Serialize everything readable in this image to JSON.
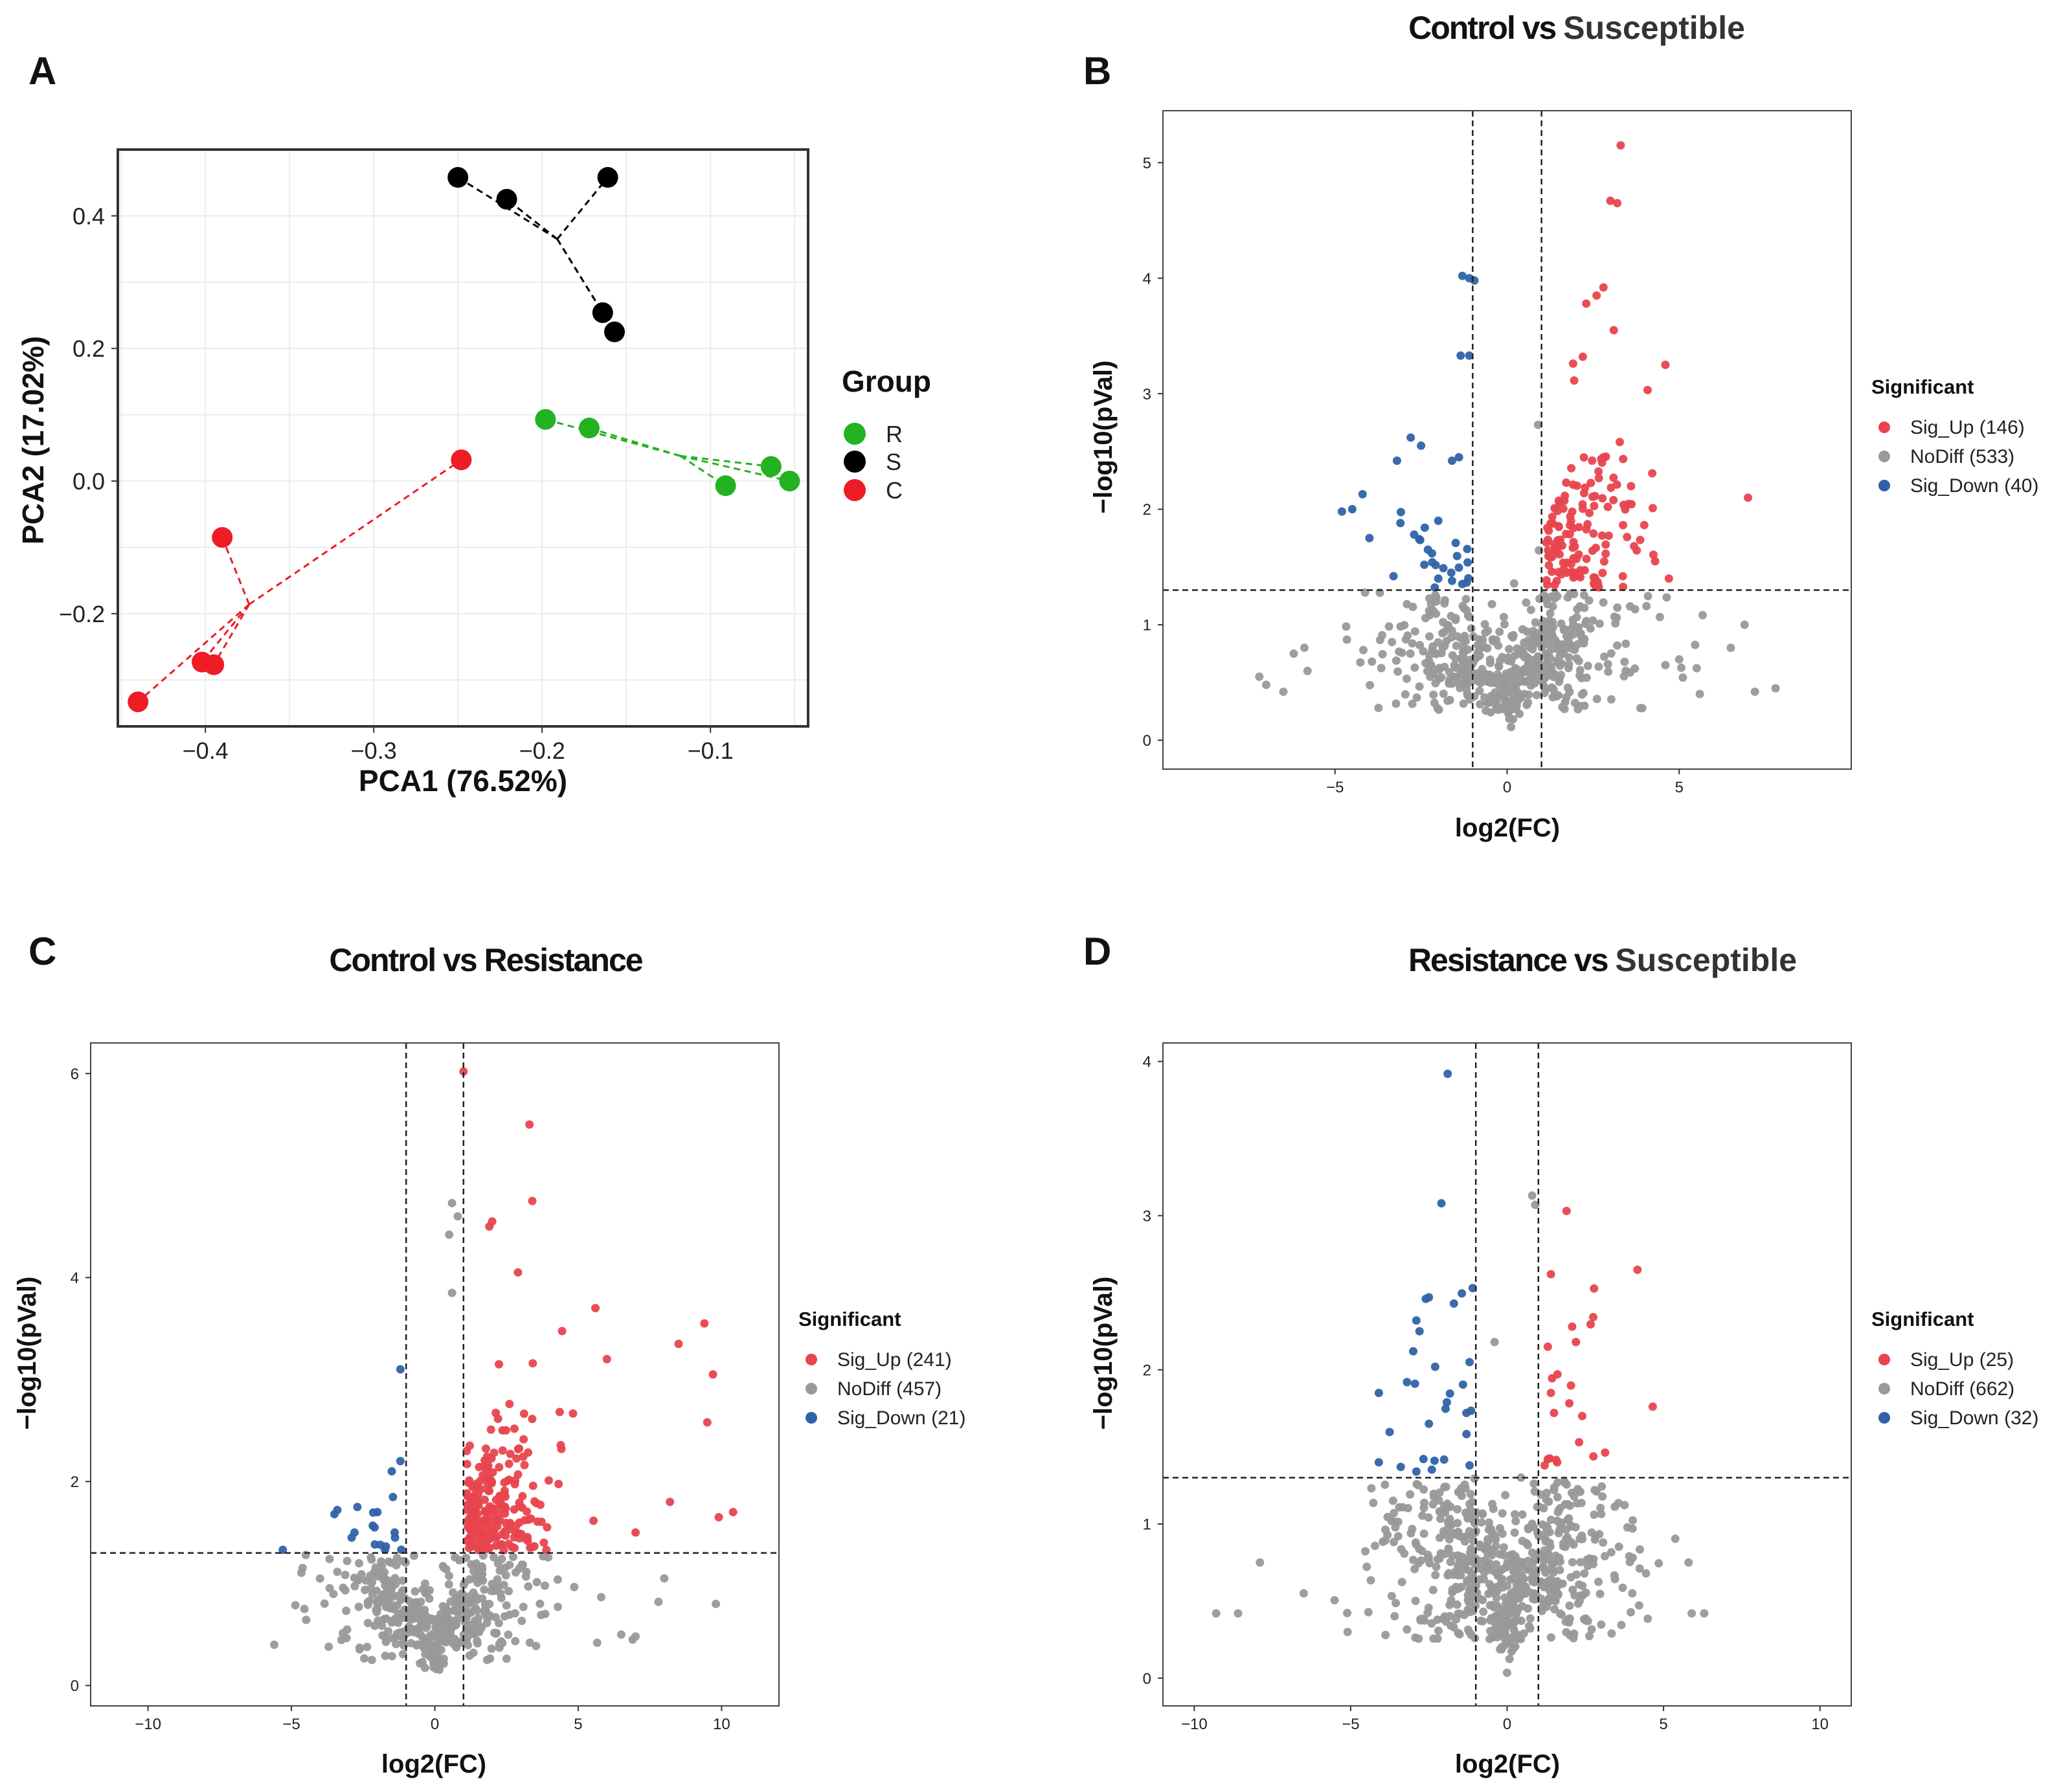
{
  "colors": {
    "R": "#22b222",
    "S": "#000000",
    "C": "#ee1c25",
    "up": "#e8444e",
    "nodiff": "#999999",
    "down": "#2f63a8",
    "grid": "#ebebeb",
    "frame": "#333333"
  },
  "chart_data": [
    {
      "id": "A",
      "type": "scatter",
      "panel_label": "A",
      "title": "",
      "xlabel": "PCA1 (76.52%)",
      "ylabel": "PCA2 (17.02%)",
      "xlim": [
        -0.452,
        -0.042
      ],
      "ylim": [
        -0.37,
        0.5
      ],
      "xticks": [
        -0.4,
        -0.3,
        -0.2,
        -0.1
      ],
      "xtick_labels": [
        "−0.4",
        "−0.3",
        "−0.2",
        "−0.1"
      ],
      "yticks": [
        -0.2,
        0.0,
        0.2,
        0.4
      ],
      "ytick_labels": [
        "−0.2",
        "0.0",
        "0.2",
        "0.4"
      ],
      "legend": {
        "title": "Group",
        "position": "right",
        "entries": [
          "R",
          "S",
          "C"
        ]
      },
      "series": [
        {
          "name": "R",
          "centroid": [
            -0.118,
            0.038
          ],
          "x": [
            -0.198,
            -0.172,
            -0.091,
            -0.064,
            -0.053
          ],
          "y": [
            0.093,
            0.08,
            -0.007,
            0.022,
            0.0
          ]
        },
        {
          "name": "S",
          "centroid": [
            -0.191,
            0.365
          ],
          "x": [
            -0.25,
            -0.221,
            -0.161,
            -0.164,
            -0.157
          ],
          "y": [
            0.458,
            0.425,
            0.458,
            0.254,
            0.225
          ]
        },
        {
          "name": "C",
          "centroid": [
            -0.374,
            -0.186
          ],
          "x": [
            -0.248,
            -0.39,
            -0.402,
            -0.395,
            -0.44
          ],
          "y": [
            0.032,
            -0.085,
            -0.273,
            -0.277,
            -0.333
          ]
        }
      ]
    },
    {
      "id": "B",
      "type": "scatter",
      "panel_label": "B",
      "title_parts": [
        "Control vs ",
        "Susceptible"
      ],
      "xlabel": "log2(FC)",
      "ylabel": "−log10(pVal)",
      "xlim": [
        -10,
        10
      ],
      "ylim": [
        -0.25,
        5.45
      ],
      "xticks": [
        -5,
        0,
        5
      ],
      "xtick_labels": [
        "−5",
        "0",
        "5"
      ],
      "yticks": [
        0,
        1,
        2,
        3,
        4,
        5
      ],
      "ytick_labels": [
        "0",
        "1",
        "2",
        "3",
        "4",
        "5"
      ],
      "fc_threshold": [
        -1,
        1
      ],
      "p_threshold": 1.3,
      "legend": {
        "title": "Significant",
        "position": "right",
        "entries": [
          "Sig_Up (146)",
          "NoDiff (533)",
          "Sig_Down (40)"
        ]
      },
      "counts": {
        "up": 146,
        "nodiff": 533,
        "down": 40
      },
      "highlight_points": {
        "up": [
          [
            3.3,
            5.15
          ],
          [
            3.0,
            4.67
          ],
          [
            3.2,
            4.65
          ],
          [
            2.8,
            3.92
          ],
          [
            2.6,
            3.85
          ],
          [
            2.3,
            3.78
          ],
          [
            3.1,
            3.55
          ],
          [
            4.6,
            3.25
          ],
          [
            2.2,
            3.32
          ],
          [
            7.0,
            2.1
          ],
          [
            4.3,
            1.55
          ],
          [
            4.7,
            1.4
          ],
          [
            2.8,
            2.45
          ],
          [
            3.6,
            2.2
          ]
        ],
        "down": [
          [
            -1.1,
            4.0
          ],
          [
            -1.3,
            4.02
          ],
          [
            -0.95,
            3.98
          ],
          [
            -1.35,
            3.33
          ],
          [
            -1.1,
            3.33
          ],
          [
            -2.8,
            2.62
          ],
          [
            -2.5,
            2.55
          ],
          [
            -3.2,
            2.42
          ],
          [
            -1.6,
            2.42
          ],
          [
            -1.4,
            2.45
          ],
          [
            -4.2,
            2.13
          ],
          [
            -4.8,
            1.98
          ],
          [
            -4.5,
            2.0
          ],
          [
            -3.1,
            1.88
          ],
          [
            -2.0,
            1.9
          ],
          [
            -4.0,
            1.75
          ],
          [
            -2.7,
            1.78
          ],
          [
            -2.3,
            1.65
          ],
          [
            -3.3,
            1.42
          ],
          [
            -2.0,
            1.4
          ],
          [
            -1.6,
            1.38
          ]
        ],
        "nodiff": [
          [
            -7.2,
            0.55
          ],
          [
            -7.0,
            0.48
          ],
          [
            -6.5,
            0.42
          ],
          [
            -6.2,
            0.75
          ],
          [
            -5.8,
            0.6
          ],
          [
            7.8,
            0.45
          ],
          [
            7.2,
            0.42
          ],
          [
            6.9,
            1.0
          ],
          [
            5.6,
            0.4
          ],
          [
            6.5,
            0.8
          ],
          [
            5.0,
            0.7
          ],
          [
            4.6,
            0.65
          ],
          [
            0.9,
            2.73
          ]
        ]
      },
      "seed": 11
    },
    {
      "id": "C",
      "type": "scatter",
      "panel_label": "C",
      "title": "Control vs Resistance",
      "xlabel": "log2(FC)",
      "ylabel": "−log10(pVal)",
      "xlim": [
        -12,
        12
      ],
      "ylim": [
        -0.2,
        6.3
      ],
      "xticks": [
        -10,
        -5,
        0,
        5,
        10
      ],
      "xtick_labels": [
        "−10",
        "−5",
        "0",
        "5",
        "10"
      ],
      "yticks": [
        0,
        2,
        4,
        6
      ],
      "ytick_labels": [
        "0",
        "2",
        "4",
        "6"
      ],
      "fc_threshold": [
        -1,
        1
      ],
      "p_threshold": 1.3,
      "legend": {
        "title": "Significant",
        "position": "right",
        "entries": [
          "Sig_Up (241)",
          "NoDiff (457)",
          "Sig_Down (21)"
        ]
      },
      "counts": {
        "up": 241,
        "nodiff": 457,
        "down": 21
      },
      "highlight_points": {
        "up": [
          [
            1.0,
            6.02
          ],
          [
            3.3,
            5.5
          ],
          [
            3.4,
            4.75
          ],
          [
            2.0,
            4.55
          ],
          [
            1.9,
            4.5
          ],
          [
            2.9,
            4.05
          ],
          [
            5.6,
            3.7
          ],
          [
            9.4,
            3.55
          ],
          [
            8.5,
            3.35
          ],
          [
            9.7,
            3.05
          ],
          [
            6.0,
            3.2
          ],
          [
            9.5,
            2.58
          ],
          [
            8.2,
            1.8
          ],
          [
            10.4,
            1.7
          ],
          [
            7.0,
            1.5
          ],
          [
            9.9,
            1.65
          ]
        ],
        "down": [
          [
            -1.2,
            3.1
          ],
          [
            -1.2,
            2.2
          ],
          [
            -1.5,
            2.1
          ],
          [
            -3.4,
            1.72
          ],
          [
            -3.5,
            1.68
          ],
          [
            -2.7,
            1.75
          ],
          [
            -2.0,
            1.7
          ],
          [
            -2.1,
            1.55
          ],
          [
            -2.8,
            1.5
          ],
          [
            -2.9,
            1.45
          ],
          [
            -1.4,
            1.5
          ],
          [
            -1.9,
            1.38
          ],
          [
            -5.3,
            1.33
          ]
        ],
        "nodiff": [
          [
            0.6,
            4.73
          ],
          [
            0.8,
            4.6
          ],
          [
            0.5,
            4.42
          ],
          [
            0.6,
            3.85
          ],
          [
            -5.6,
            0.4
          ],
          [
            -3.7,
            0.38
          ],
          [
            -4.5,
            1.28
          ],
          [
            8.0,
            1.05
          ],
          [
            7.8,
            0.82
          ],
          [
            9.8,
            0.8
          ],
          [
            6.9,
            0.45
          ],
          [
            6.5,
            0.5
          ],
          [
            7.0,
            0.48
          ]
        ]
      },
      "seed": 23
    },
    {
      "id": "D",
      "type": "scatter",
      "panel_label": "D",
      "title_parts": [
        "Resistance vs ",
        "Susceptible"
      ],
      "xlabel": "log2(FC)",
      "ylabel": "−log10(pVal)",
      "xlim": [
        -11,
        11
      ],
      "ylim": [
        -0.18,
        4.12
      ],
      "xticks": [
        -10,
        -5,
        0,
        5,
        10
      ],
      "xtick_labels": [
        "−10",
        "−5",
        "0",
        "5",
        "10"
      ],
      "yticks": [
        0,
        1,
        2,
        3,
        4
      ],
      "ytick_labels": [
        "0",
        "1",
        "2",
        "3",
        "4"
      ],
      "fc_threshold": [
        -1,
        1
      ],
      "p_threshold": 1.3,
      "legend": {
        "title": "Significant",
        "position": "right",
        "entries": [
          "Sig_Up (25)",
          "NoDiff (662)",
          "Sig_Down (32)"
        ]
      },
      "counts": {
        "up": 25,
        "nodiff": 662,
        "down": 32
      },
      "highlight_points": {
        "up": [
          [
            1.9,
            3.03
          ],
          [
            1.4,
            2.62
          ],
          [
            2.2,
            2.18
          ],
          [
            1.3,
            2.15
          ],
          [
            1.4,
            1.85
          ],
          [
            2.4,
            1.7
          ],
          [
            1.5,
            1.72
          ],
          [
            2.3,
            1.53
          ],
          [
            1.3,
            1.42
          ],
          [
            1.6,
            1.4
          ],
          [
            1.2,
            1.38
          ]
        ],
        "down": [
          [
            -1.9,
            3.92
          ],
          [
            -2.1,
            3.08
          ],
          [
            -1.1,
            2.53
          ],
          [
            -2.5,
            2.47
          ],
          [
            -2.6,
            2.46
          ],
          [
            -1.7,
            2.43
          ],
          [
            -2.9,
            2.32
          ],
          [
            -2.8,
            2.25
          ],
          [
            -3.0,
            2.12
          ],
          [
            -3.2,
            1.92
          ],
          [
            -2.3,
            2.02
          ],
          [
            -1.2,
            2.05
          ],
          [
            -4.1,
            1.85
          ],
          [
            -2.5,
            1.65
          ],
          [
            -1.3,
            1.72
          ],
          [
            -4.1,
            1.4
          ],
          [
            -3.4,
            1.37
          ],
          [
            -2.9,
            1.34
          ],
          [
            -1.2,
            1.38
          ]
        ],
        "nodiff": [
          [
            0.8,
            3.13
          ],
          [
            0.9,
            3.07
          ],
          [
            -0.4,
            2.18
          ],
          [
            -9.3,
            0.42
          ],
          [
            -8.6,
            0.42
          ],
          [
            -7.9,
            0.75
          ],
          [
            -6.5,
            0.55
          ],
          [
            5.8,
            0.75
          ],
          [
            6.3,
            0.42
          ],
          [
            5.9,
            0.42
          ],
          [
            4.0,
            0.55
          ],
          [
            1.5,
            1.22
          ],
          [
            2.8,
            1.22
          ]
        ]
      },
      "seed": 37
    }
  ]
}
